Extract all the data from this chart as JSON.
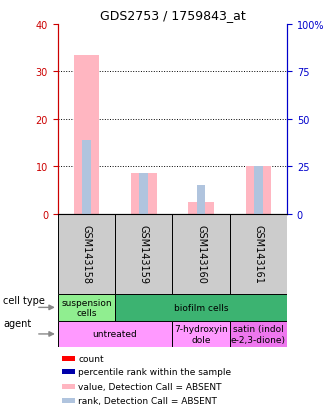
{
  "title": "GDS2753 / 1759843_at",
  "samples": [
    "GSM143158",
    "GSM143159",
    "GSM143160",
    "GSM143161"
  ],
  "bar_values": [
    33.5,
    8.5,
    2.5,
    10.0
  ],
  "bar_ranks": [
    15.5,
    8.5,
    6.0,
    10.0
  ],
  "ylim_left": [
    0,
    40
  ],
  "ylim_right": [
    0,
    100
  ],
  "yticks_left": [
    0,
    10,
    20,
    30,
    40
  ],
  "yticks_right": [
    0,
    25,
    50,
    75,
    100
  ],
  "yticklabels_right": [
    "0",
    "25",
    "50",
    "75",
    "100%"
  ],
  "bar_color": "#ffb6c1",
  "rank_color": "#b0c4de",
  "ct_data": [
    {
      "label": "suspension\ncells",
      "color": "#90EE90",
      "start": 0,
      "end": 1
    },
    {
      "label": "biofilm cells",
      "color": "#3CB371",
      "start": 1,
      "end": 4
    }
  ],
  "ag_data": [
    {
      "label": "untreated",
      "color": "#FF99FF",
      "start": 0,
      "end": 2
    },
    {
      "label": "7-hydroxyin\ndole",
      "color": "#FF99FF",
      "start": 2,
      "end": 3
    },
    {
      "label": "satin (indol\ne-2,3-dione)",
      "color": "#EE77EE",
      "start": 3,
      "end": 4
    }
  ],
  "legend_items": [
    {
      "color": "#FF0000",
      "label": "count"
    },
    {
      "color": "#0000AA",
      "label": "percentile rank within the sample"
    },
    {
      "color": "#ffb6c1",
      "label": "value, Detection Call = ABSENT"
    },
    {
      "color": "#b0c4de",
      "label": "rank, Detection Call = ABSENT"
    }
  ],
  "gsm_bg": "#cccccc",
  "left_axis_color": "#CC0000",
  "right_axis_color": "#0000CC"
}
